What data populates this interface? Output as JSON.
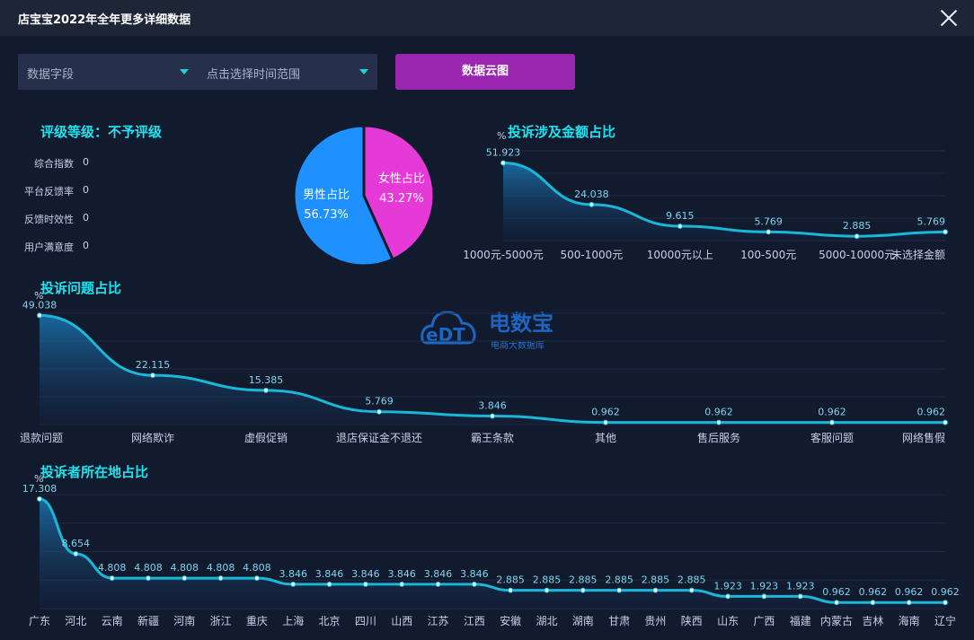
{
  "window": {
    "title": "店宝宝2022年全年更多详细数据"
  },
  "controls": {
    "field_select": "数据字段",
    "time_select": "点击选择时间范围",
    "cloud_button": "数据云图"
  },
  "rating": {
    "title": "评级等级：不予评级",
    "items": [
      {
        "label": "综合指数",
        "value": "0"
      },
      {
        "label": "平台反馈率",
        "value": "0"
      },
      {
        "label": "反馈时效性",
        "value": "0"
      },
      {
        "label": "用户满意度",
        "value": "0"
      }
    ]
  },
  "logo": {
    "name": "电数宝",
    "sub": "电商大数据库",
    "mark": "eDT"
  },
  "colors": {
    "accent": "#1fe3ef",
    "line": "#19b8d8",
    "male": "#1e90ff",
    "female": "#e63ad8",
    "button": "#9b27b0"
  },
  "chart_data": [
    {
      "type": "pie",
      "title": "",
      "slices": [
        {
          "label": "女性占比",
          "value": 43.27,
          "value_label": "43.27%"
        },
        {
          "label": "男性占比",
          "value": 56.73,
          "value_label": "56.73%"
        }
      ]
    },
    {
      "type": "area",
      "title": "投诉涉及金额占比",
      "ylabel": "%",
      "categories": [
        "1000元-5000元",
        "500-1000元",
        "10000元以上",
        "100-500元",
        "5000-10000元",
        "未选择金额"
      ],
      "values": [
        51.923,
        24.038,
        9.615,
        5.769,
        2.885,
        5.769
      ],
      "value_labels": [
        "51.923",
        "24.038",
        "9.615",
        "5.769",
        "2.885",
        "5.769"
      ],
      "ylim": [
        0,
        60
      ]
    },
    {
      "type": "area",
      "title": "投诉问题占比",
      "ylabel": "%",
      "categories": [
        "退款问题",
        "网络欺诈",
        "虚假促销",
        "退店保证金不退还",
        "霸王条款",
        "其他",
        "售后服务",
        "客服问题",
        "网络售假"
      ],
      "values": [
        49.038,
        22.115,
        15.385,
        5.769,
        3.846,
        0.962,
        0.962,
        0.962,
        0.962
      ],
      "value_labels": [
        "49.038",
        "22.115",
        "15.385",
        "5.769",
        "3.846",
        "0.962",
        "0.962",
        "0.962",
        "0.962"
      ],
      "ylim": [
        0,
        50
      ]
    },
    {
      "type": "area",
      "title": "投诉者所在地占比",
      "ylabel": "%",
      "categories": [
        "广东",
        "河北",
        "云南",
        "新疆",
        "河南",
        "浙江",
        "重庆",
        "上海",
        "北京",
        "四川",
        "山西",
        "江苏",
        "江西",
        "安徽",
        "湖北",
        "湖南",
        "甘肃",
        "贵州",
        "陕西",
        "山东",
        "广西",
        "福建",
        "内蒙古",
        "吉林",
        "海南",
        "辽宁"
      ],
      "values": [
        17.308,
        8.654,
        4.808,
        4.808,
        4.808,
        4.808,
        4.808,
        3.846,
        3.846,
        3.846,
        3.846,
        3.846,
        3.846,
        2.885,
        2.885,
        2.885,
        2.885,
        2.885,
        2.885,
        1.923,
        1.923,
        1.923,
        0.962,
        0.962,
        0.962,
        0.962
      ],
      "value_labels": [
        "17.308",
        "8.654",
        "4.808",
        "4.808",
        "4.808",
        "4.808",
        "4.808",
        "3.846",
        "3.846",
        "3.846",
        "3.846",
        "3.846",
        "3.846",
        "2.885",
        "2.885",
        "2.885",
        "2.885",
        "2.885",
        "2.885",
        "1.923",
        "1.923",
        "1.923",
        "0.962",
        "0.962",
        "0.962",
        "0.962"
      ],
      "ylim": [
        0,
        18
      ]
    }
  ]
}
